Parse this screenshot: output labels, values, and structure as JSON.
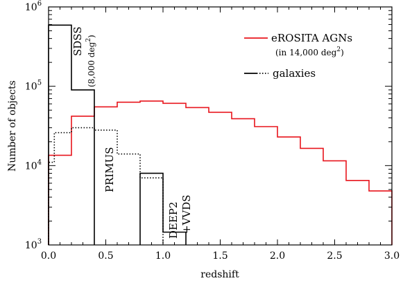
{
  "chart_data": {
    "type": "step-line",
    "title": "",
    "xlabel": "redshift",
    "ylabel": "Number of objects",
    "x_scale": "linear",
    "y_scale": "log",
    "xlim": [
      0.0,
      3.0
    ],
    "ylim": [
      1000,
      1000000
    ],
    "x_ticks": [
      0.0,
      0.5,
      1.0,
      1.5,
      2.0,
      2.5,
      3.0
    ],
    "x_tick_labels": [
      "0.0",
      "0.5",
      "1.0",
      "1.5",
      "2.0",
      "2.5",
      "3.0"
    ],
    "y_ticks": [
      1000,
      10000,
      100000,
      1000000
    ],
    "y_tick_labels": [
      {
        "base": "10",
        "exp": "3"
      },
      {
        "base": "10",
        "exp": "4"
      },
      {
        "base": "10",
        "exp": "5"
      },
      {
        "base": "10",
        "exp": "6"
      }
    ],
    "grid": false,
    "legend_position": "top-right",
    "legend": [
      {
        "label": "eROSITA AGNs",
        "sublabel_prefix": "(in 14,000 deg",
        "sublabel_sup": "2",
        "sublabel_suffix": ")",
        "color": "#e8141c",
        "style": "solid"
      },
      {
        "label": "galaxies",
        "color": "#000000",
        "style": "solid+dotted"
      }
    ],
    "series": [
      {
        "name": "eROSITA AGNs",
        "color": "#e8141c",
        "dash": "solid",
        "bin_edges": [
          0.0,
          0.2,
          0.4,
          0.6,
          0.8,
          1.0,
          1.2,
          1.4,
          1.6,
          1.8,
          2.0,
          2.2,
          2.4,
          2.6,
          2.8,
          3.0
        ],
        "values": [
          13500,
          42000,
          55000,
          63000,
          65000,
          61000,
          54000,
          47000,
          39000,
          31000,
          23000,
          16500,
          11500,
          6500,
          4800
        ]
      },
      {
        "name": "SDSS",
        "color": "#000000",
        "dash": "solid",
        "bin_edges": [
          0.0,
          0.2,
          0.4
        ],
        "values": [
          590000,
          90000
        ]
      },
      {
        "name": "PRIMUS",
        "color": "#000000",
        "dash": "dotted",
        "bin_edges": [
          0.0,
          0.05,
          0.2,
          0.4,
          0.6,
          0.8,
          1.0
        ],
        "values": [
          11000,
          26000,
          30000,
          28000,
          14000,
          7000
        ]
      },
      {
        "name": "DEEP2+VVDS",
        "color": "#000000",
        "dash": "solid",
        "bin_edges": [
          0.8,
          1.0,
          1.2
        ],
        "values": [
          8000,
          1450
        ]
      }
    ],
    "annotations": {
      "sdss": {
        "line1": "SDSS",
        "line2_prefix": "(8,000 deg",
        "line2_sup": "2",
        "line2_suffix": ")"
      },
      "primus": "PRIMUS",
      "deep2": {
        "line1": "DEEP2",
        "line2": "+VVDS"
      }
    }
  }
}
